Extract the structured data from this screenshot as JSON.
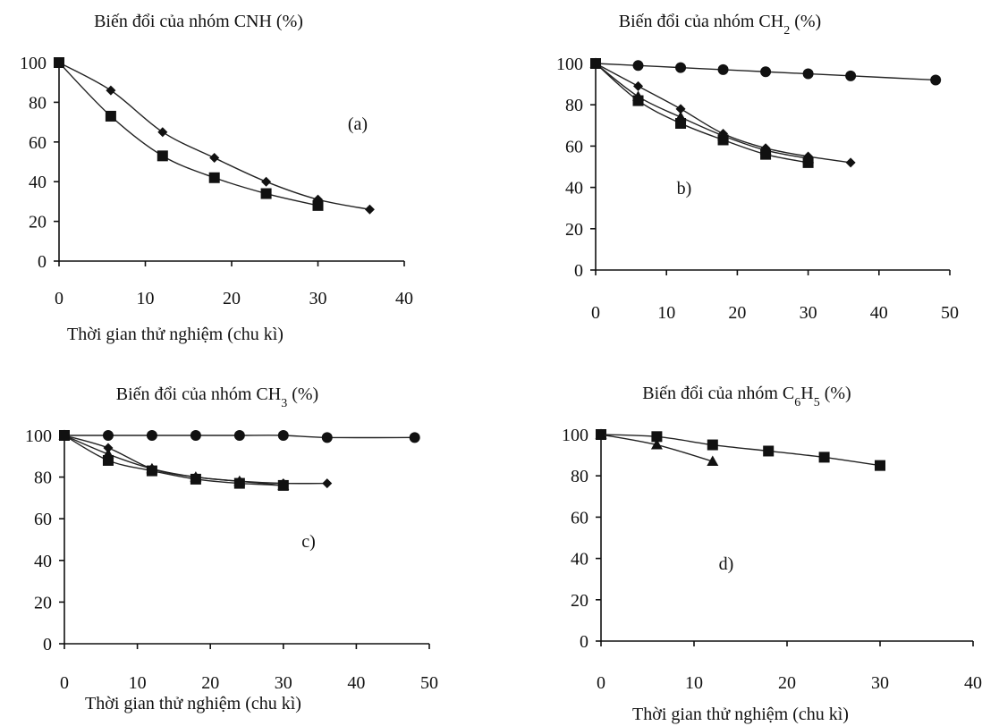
{
  "chart_data": [
    {
      "id": "a",
      "type": "line",
      "title_prefix": "Biến đổi của nhóm CNH (%)",
      "title_sub": "",
      "title_suffix": "",
      "xlabel": "Thời gian thử nghiệm (chu kì)",
      "annotation": "(a)",
      "xlim": [
        0,
        40
      ],
      "ylim": [
        0,
        100
      ],
      "xticks": [
        0,
        10,
        20,
        30,
        40
      ],
      "yticks": [
        0,
        20,
        40,
        60,
        80,
        100
      ],
      "series": [
        {
          "marker": "diamond",
          "x": [
            0,
            6,
            12,
            18,
            24,
            30,
            36
          ],
          "y": [
            100,
            86,
            65,
            52,
            40,
            31,
            26
          ]
        },
        {
          "marker": "square",
          "x": [
            0,
            6,
            12,
            18,
            24,
            30
          ],
          "y": [
            100,
            73,
            53,
            42,
            34,
            28
          ]
        }
      ]
    },
    {
      "id": "b",
      "type": "line",
      "title_prefix": "Biến đổi của nhóm CH",
      "title_sub": "2",
      "title_suffix": " (%)",
      "xlabel": "",
      "annotation": "b)",
      "xlim": [
        0,
        50
      ],
      "ylim": [
        0,
        100
      ],
      "xticks": [
        0,
        10,
        20,
        30,
        40,
        50
      ],
      "yticks": [
        0,
        20,
        40,
        60,
        80,
        100
      ],
      "series": [
        {
          "marker": "circle",
          "x": [
            0,
            6,
            12,
            18,
            24,
            30,
            36,
            48
          ],
          "y": [
            100,
            99,
            98,
            97,
            96,
            95,
            94,
            92
          ]
        },
        {
          "marker": "diamond",
          "x": [
            0,
            6,
            12,
            18,
            24,
            30,
            36
          ],
          "y": [
            100,
            89,
            78,
            66,
            59,
            55,
            52
          ]
        },
        {
          "marker": "triangle",
          "x": [
            0,
            6,
            12,
            18,
            24,
            30
          ],
          "y": [
            100,
            84,
            74,
            65,
            58,
            54
          ]
        },
        {
          "marker": "square",
          "x": [
            0,
            6,
            12,
            18,
            24,
            30
          ],
          "y": [
            100,
            82,
            71,
            63,
            56,
            52
          ]
        }
      ]
    },
    {
      "id": "c",
      "type": "line",
      "title_prefix": "Biến đổi của nhóm CH",
      "title_sub": "3",
      "title_suffix": " (%)",
      "xlabel": "Thời gian thử nghiệm (chu kì)",
      "annotation": "c)",
      "xlim": [
        0,
        50
      ],
      "ylim": [
        0,
        100
      ],
      "xticks": [
        0,
        10,
        20,
        30,
        40,
        50
      ],
      "yticks": [
        0,
        20,
        40,
        60,
        80,
        100
      ],
      "series": [
        {
          "marker": "circle",
          "x": [
            0,
            6,
            12,
            18,
            24,
            30,
            36,
            48
          ],
          "y": [
            100,
            100,
            100,
            100,
            100,
            100,
            99,
            99
          ]
        },
        {
          "marker": "diamond",
          "x": [
            0,
            6,
            12,
            18,
            24,
            30,
            36
          ],
          "y": [
            100,
            94,
            84,
            80,
            78,
            77,
            77
          ]
        },
        {
          "marker": "triangle",
          "x": [
            0,
            6,
            12,
            18,
            24,
            30
          ],
          "y": [
            100,
            91,
            84,
            80,
            78,
            76
          ]
        },
        {
          "marker": "square",
          "x": [
            0,
            6,
            12,
            18,
            24,
            30
          ],
          "y": [
            100,
            88,
            83,
            79,
            77,
            76
          ]
        }
      ]
    },
    {
      "id": "d",
      "type": "line",
      "title_prefix": "Biến đổi của nhóm C",
      "title_sub": "6",
      "title_mid": "H",
      "title_sub2": "5",
      "title_suffix": " (%)",
      "xlabel": "Thời gian thử nghiệm (chu kì)",
      "annotation": "d)",
      "xlim": [
        0,
        40
      ],
      "ylim": [
        0,
        100
      ],
      "xticks": [
        0,
        10,
        20,
        30,
        40
      ],
      "yticks": [
        0,
        20,
        40,
        60,
        80,
        100
      ],
      "series": [
        {
          "marker": "square",
          "x": [
            0,
            6,
            12,
            18,
            24,
            30
          ],
          "y": [
            100,
            99,
            95,
            92,
            89,
            85
          ]
        },
        {
          "marker": "triangle",
          "x": [
            0,
            6,
            12
          ],
          "y": [
            100,
            95,
            87
          ]
        }
      ]
    }
  ]
}
